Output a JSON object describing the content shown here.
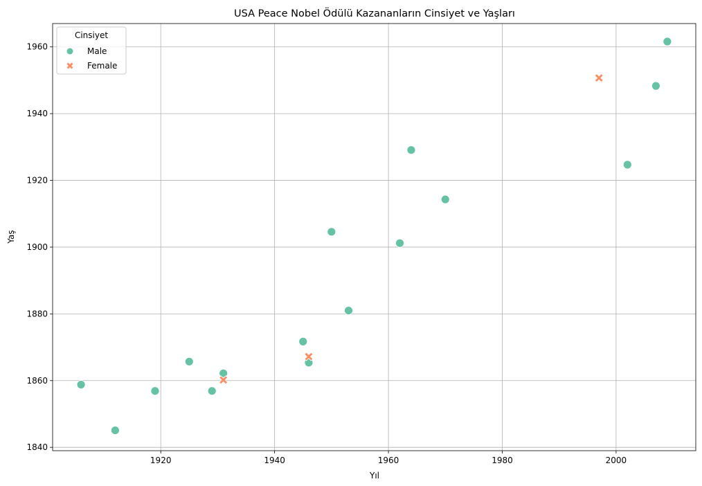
{
  "chart_data": {
    "type": "scatter",
    "title": "USA Peace Nobel Ödülü Kazananların Cinsiyet ve Yaşları",
    "xlabel": "Yıl",
    "ylabel": "Yaş",
    "xlim": [
      1901,
      2014
    ],
    "ylim": [
      1839,
      1967
    ],
    "xticks": [
      1920,
      1940,
      1960,
      1980,
      2000
    ],
    "yticks": [
      1840,
      1860,
      1880,
      1900,
      1920,
      1940,
      1960
    ],
    "grid": true,
    "legend": {
      "title": "Cinsiyet",
      "placement": "upper-left"
    },
    "series": [
      {
        "name": "Male",
        "marker": "circle",
        "color": "#66c2a5",
        "points": [
          {
            "x": 1906,
            "y": 1858.8
          },
          {
            "x": 1912,
            "y": 1845.1
          },
          {
            "x": 1919,
            "y": 1856.9
          },
          {
            "x": 1925,
            "y": 1865.7
          },
          {
            "x": 1929,
            "y": 1856.9
          },
          {
            "x": 1931,
            "y": 1862.2
          },
          {
            "x": 1945,
            "y": 1871.7
          },
          {
            "x": 1946,
            "y": 1865.4
          },
          {
            "x": 1950,
            "y": 1904.6
          },
          {
            "x": 1953,
            "y": 1881.0
          },
          {
            "x": 1962,
            "y": 1901.2
          },
          {
            "x": 1964,
            "y": 1929.1
          },
          {
            "x": 1970,
            "y": 1914.3
          },
          {
            "x": 2002,
            "y": 1924.7
          },
          {
            "x": 2007,
            "y": 1948.3
          },
          {
            "x": 2009,
            "y": 1961.6
          }
        ]
      },
      {
        "name": "Female",
        "marker": "x",
        "color": "#fc8d62",
        "points": [
          {
            "x": 1931,
            "y": 1860.2
          },
          {
            "x": 1946,
            "y": 1867.2
          },
          {
            "x": 1997,
            "y": 1950.7
          }
        ]
      }
    ]
  }
}
